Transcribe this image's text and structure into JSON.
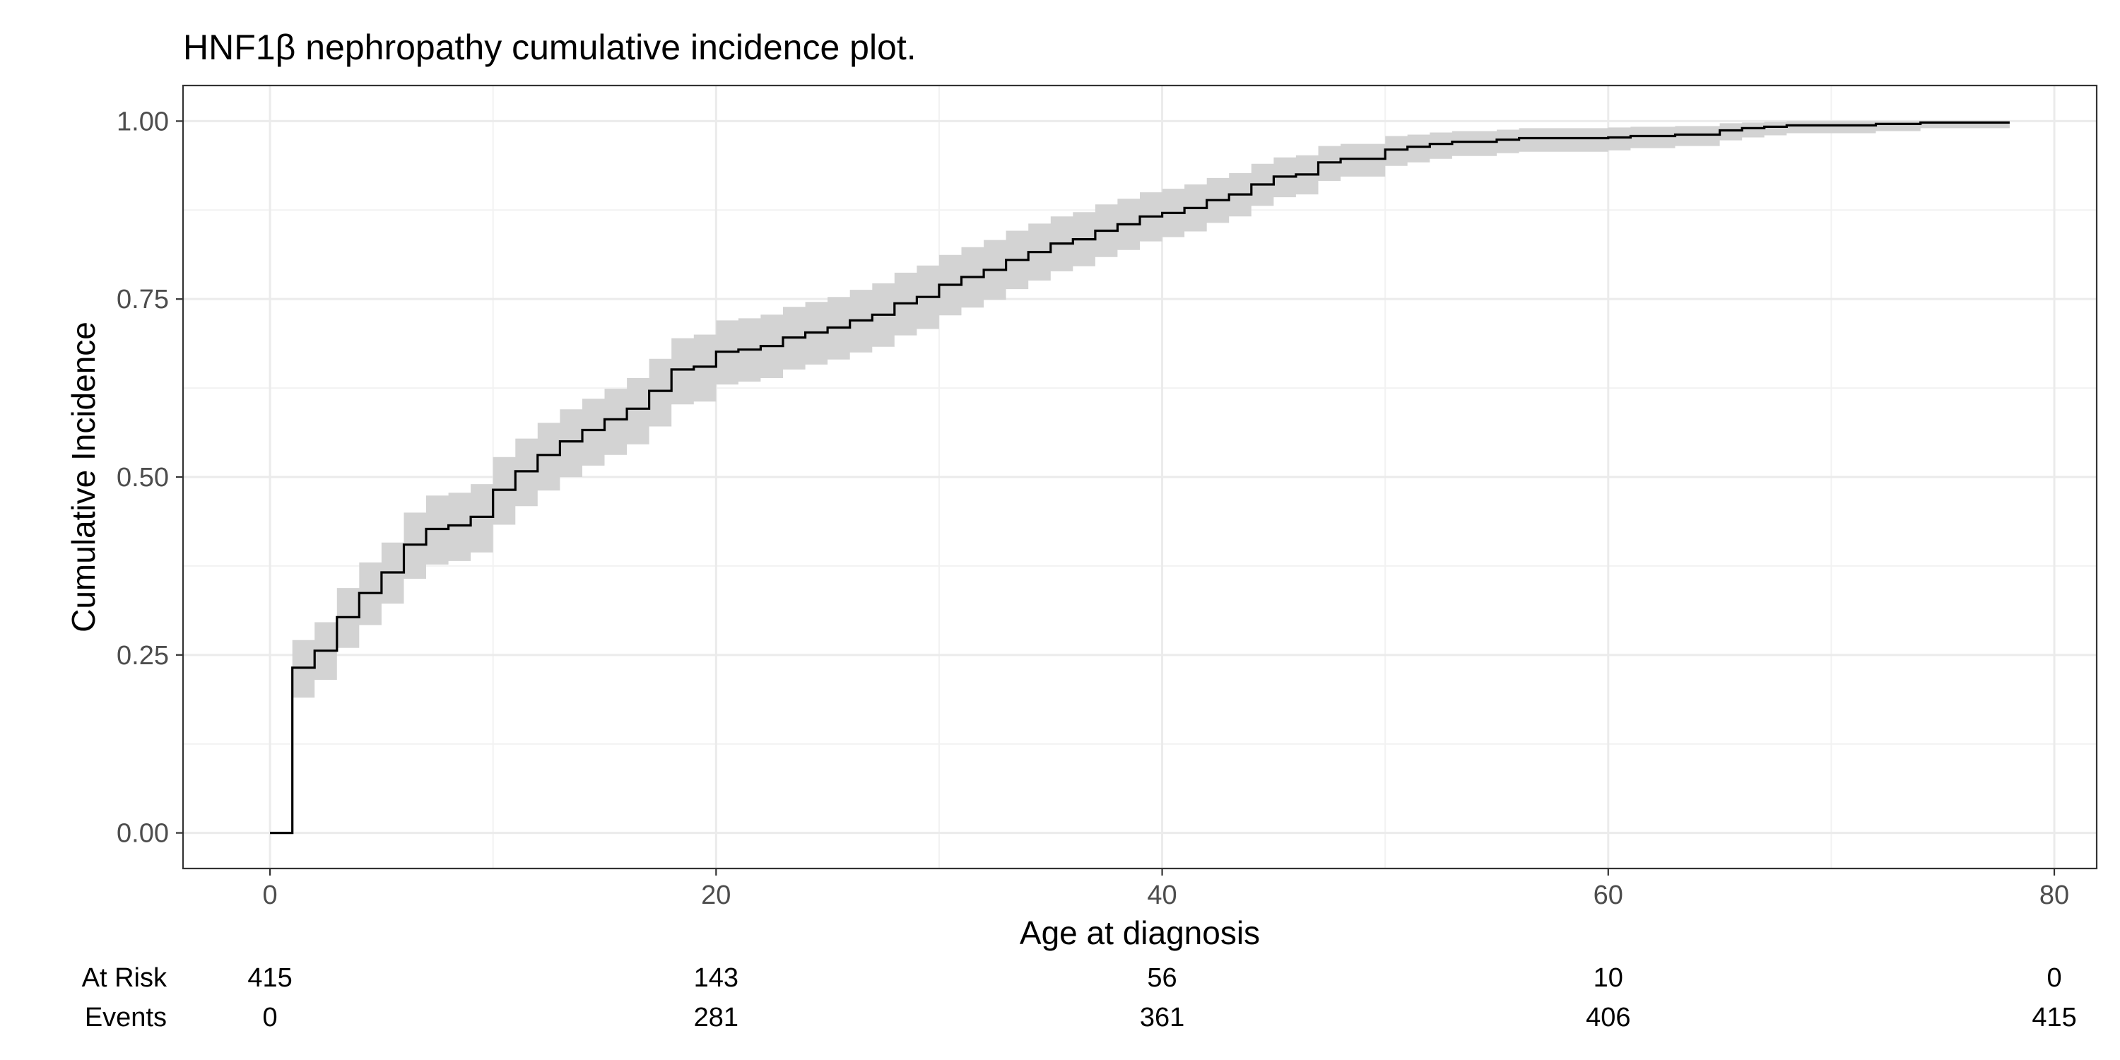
{
  "chart_data": {
    "type": "line",
    "title": "HNF1β nephropathy cumulative incidence plot.",
    "xlabel": "Age at diagnosis",
    "ylabel": "Cumulative Incidence",
    "xlim": [
      -3.9,
      81.9
    ],
    "ylim": [
      -0.05,
      1.05
    ],
    "x_ticks": [
      0,
      20,
      40,
      60,
      80
    ],
    "x_tick_labels": [
      "0",
      "20",
      "40",
      "60",
      "80"
    ],
    "y_ticks": [
      0,
      0.25,
      0.5,
      0.75,
      1.0
    ],
    "y_tick_labels": [
      "0.00",
      "0.25",
      "0.50",
      "0.75",
      "1.00"
    ],
    "grid": true,
    "colors": {
      "line": "#000000",
      "ribbon": "#d3d3d3",
      "grid": "#ebebeb",
      "panel_border": "#333333"
    },
    "series": [
      {
        "step": "post",
        "points": [
          [
            0,
            0
          ],
          [
            1,
            0.232
          ],
          [
            2,
            0.256
          ],
          [
            3,
            0.303
          ],
          [
            4,
            0.337
          ],
          [
            5,
            0.366
          ],
          [
            6,
            0.405
          ],
          [
            7,
            0.427
          ],
          [
            8,
            0.432
          ],
          [
            9,
            0.444
          ],
          [
            10,
            0.482
          ],
          [
            11,
            0.508
          ],
          [
            12,
            0.531
          ],
          [
            13,
            0.55
          ],
          [
            14,
            0.566
          ],
          [
            15,
            0.581
          ],
          [
            16,
            0.596
          ],
          [
            17,
            0.621
          ],
          [
            18,
            0.651
          ],
          [
            19,
            0.655
          ],
          [
            20,
            0.676
          ],
          [
            21,
            0.679
          ],
          [
            22,
            0.684
          ],
          [
            23,
            0.696
          ],
          [
            24,
            0.703
          ],
          [
            25,
            0.71
          ],
          [
            26,
            0.72
          ],
          [
            27,
            0.728
          ],
          [
            28,
            0.744
          ],
          [
            29,
            0.753
          ],
          [
            30,
            0.77
          ],
          [
            31,
            0.781
          ],
          [
            32,
            0.791
          ],
          [
            33,
            0.805
          ],
          [
            34,
            0.816
          ],
          [
            35,
            0.828
          ],
          [
            36,
            0.834
          ],
          [
            37,
            0.846
          ],
          [
            38,
            0.855
          ],
          [
            39,
            0.866
          ],
          [
            40,
            0.871
          ],
          [
            41,
            0.878
          ],
          [
            42,
            0.889
          ],
          [
            43,
            0.897
          ],
          [
            44,
            0.911
          ],
          [
            45,
            0.922
          ],
          [
            46,
            0.925
          ],
          [
            47,
            0.942
          ],
          [
            48,
            0.947
          ],
          [
            50,
            0.96
          ],
          [
            51,
            0.964
          ],
          [
            52,
            0.968
          ],
          [
            53,
            0.971
          ],
          [
            55,
            0.974
          ],
          [
            56,
            0.976
          ],
          [
            60,
            0.977
          ],
          [
            61,
            0.979
          ],
          [
            63,
            0.981
          ],
          [
            65,
            0.987
          ],
          [
            66,
            0.99
          ],
          [
            67,
            0.992
          ],
          [
            68,
            0.994
          ],
          [
            72,
            0.996
          ],
          [
            74,
            0.998
          ],
          [
            78,
            0.998
          ]
        ],
        "lower": [
          0,
          0.19,
          0.215,
          0.26,
          0.292,
          0.322,
          0.357,
          0.377,
          0.382,
          0.394,
          0.433,
          0.459,
          0.481,
          0.5,
          0.516,
          0.531,
          0.546,
          0.571,
          0.602,
          0.606,
          0.63,
          0.634,
          0.639,
          0.651,
          0.658,
          0.665,
          0.675,
          0.683,
          0.699,
          0.708,
          0.727,
          0.738,
          0.749,
          0.764,
          0.776,
          0.789,
          0.796,
          0.809,
          0.819,
          0.831,
          0.837,
          0.845,
          0.857,
          0.866,
          0.881,
          0.893,
          0.897,
          0.916,
          0.922,
          0.937,
          0.942,
          0.947,
          0.951,
          0.955,
          0.957,
          0.959,
          0.962,
          0.965,
          0.973,
          0.977,
          0.98,
          0.983,
          0.986,
          0.99,
          0.99
        ],
        "upper": [
          0,
          0.271,
          0.296,
          0.344,
          0.38,
          0.408,
          0.45,
          0.474,
          0.478,
          0.49,
          0.528,
          0.554,
          0.576,
          0.595,
          0.61,
          0.624,
          0.639,
          0.666,
          0.695,
          0.7,
          0.72,
          0.723,
          0.728,
          0.739,
          0.746,
          0.753,
          0.763,
          0.772,
          0.787,
          0.797,
          0.812,
          0.823,
          0.833,
          0.846,
          0.856,
          0.866,
          0.872,
          0.883,
          0.891,
          0.9,
          0.905,
          0.911,
          0.92,
          0.927,
          0.94,
          0.949,
          0.952,
          0.965,
          0.968,
          0.979,
          0.981,
          0.984,
          0.986,
          0.988,
          0.99,
          0.991,
          0.992,
          0.993,
          0.997,
          0.998,
          0.999,
          1.0,
          1.0,
          1.0,
          1.0
        ]
      }
    ],
    "risk_table": {
      "x": [
        0,
        20,
        40,
        60,
        80
      ],
      "rows": [
        {
          "label": "At Risk",
          "values": [
            "415",
            "143",
            "56",
            "10",
            "0"
          ]
        },
        {
          "label": "Events",
          "values": [
            "0",
            "281",
            "361",
            "406",
            "415"
          ]
        }
      ]
    }
  }
}
